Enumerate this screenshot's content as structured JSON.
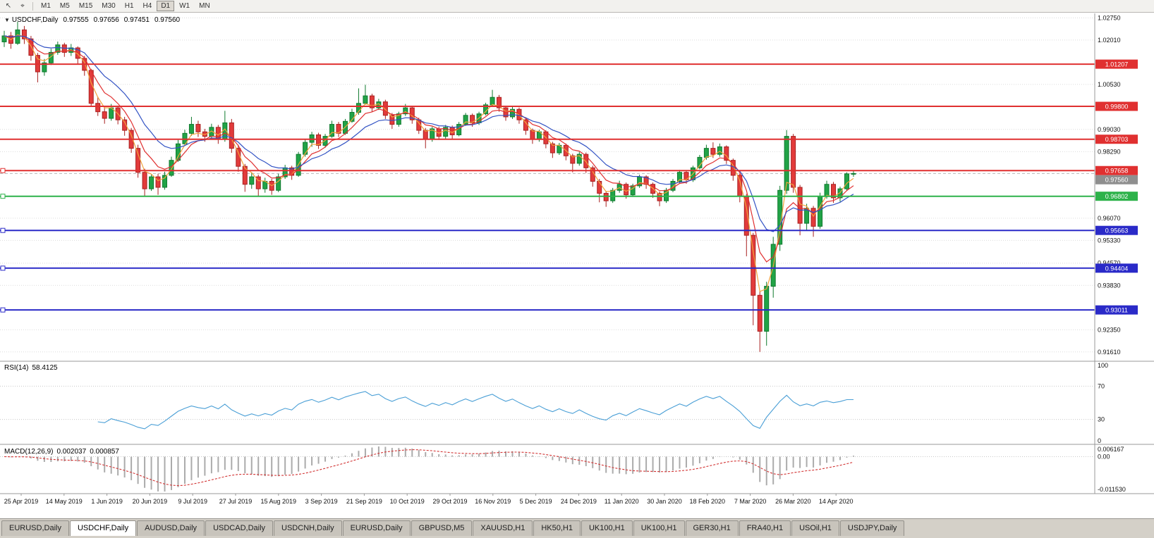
{
  "toolbar": {
    "pointer_icon": "↖",
    "crosshair_icon": "⌖",
    "timeframes": [
      "M1",
      "M5",
      "M15",
      "M30",
      "H1",
      "H4",
      "D1",
      "W1",
      "MN"
    ],
    "active_timeframe": "D1"
  },
  "chart": {
    "info": {
      "expander_icon": "▼",
      "symbol": "USDCHF,Daily",
      "open": "0.97555",
      "high": "0.97656",
      "low": "0.97451",
      "close": "0.97560"
    },
    "y_axis_ticks": [
      "1.02750",
      "1.02010",
      "1.00530",
      "0.99030",
      "0.98290",
      "0.96070",
      "0.95330",
      "0.94570",
      "0.93830",
      "0.92350",
      "0.91610"
    ],
    "levels": [
      {
        "price": 1.01207,
        "label": "1.01207",
        "color": "#e03030",
        "handle": false
      },
      {
        "price": 0.998,
        "label": "0.99800",
        "color": "#e03030",
        "handle": false
      },
      {
        "price": 0.98703,
        "label": "0.98703",
        "color": "#e03030",
        "handle": false
      },
      {
        "price": 0.97658,
        "label": "0.97658",
        "color": "#e03030",
        "handle": true
      },
      {
        "price": 0.96802,
        "label": "0.96802",
        "color": "#2db24a",
        "handle": true
      },
      {
        "price": 0.95663,
        "label": "0.95663",
        "color": "#2a2ac8",
        "handle": true
      },
      {
        "price": 0.94404,
        "label": "0.94404",
        "color": "#2a2ac8",
        "handle": true
      },
      {
        "price": 0.93011,
        "label": "0.93011",
        "color": "#2a2ac8",
        "handle": true
      }
    ],
    "current_price": {
      "label": "0.97560",
      "value": 0.9756,
      "color": "#8f8f8f"
    },
    "indicators": {
      "rsi": {
        "name": "RSI(14)",
        "value": "58.4125",
        "period": 14,
        "axis_labels": [
          "100",
          "70",
          "30",
          "0"
        ],
        "upper_level": 70,
        "lower_level": 30,
        "line_color": "#4a9fd6"
      },
      "macd": {
        "name": "MACD(12,26,9)",
        "value_main": "0.002037",
        "value_signal": "0.000857",
        "fast": 12,
        "slow": 26,
        "signal": 9,
        "axis_top": "0.006167",
        "axis_zero": "0.00",
        "axis_bottom": "-0.011530",
        "histogram_color": "#ababab",
        "signal_color": "#d23333"
      }
    }
  },
  "chart_data": {
    "type": "candlestick",
    "title": "USDCHF,Daily",
    "ylim": [
      0.913,
      1.029
    ],
    "up_color": "#21a347",
    "down_color": "#e23b3b",
    "up_border": "#0f7a2e",
    "down_border": "#a82020",
    "x_labels": [
      "25 Apr 2019",
      "14 May 2019",
      "1 Jun 2019",
      "20 Jun 2019",
      "9 Jul 2019",
      "27 Jul 2019",
      "15 Aug 2019",
      "3 Sep 2019",
      "21 Sep 2019",
      "10 Oct 2019",
      "29 Oct 2019",
      "16 Nov 2019",
      "5 Dec 2019",
      "24 Dec 2019",
      "11 Jan 2020",
      "30 Jan 2020",
      "18 Feb 2020",
      "7 Mar 2020",
      "26 Mar 2020",
      "14 Apr 2020"
    ],
    "moving_averages": [
      {
        "name": "ma-fast",
        "period": 3,
        "color": "#f2a33c"
      },
      {
        "name": "ma-mid",
        "period": 6,
        "color": "#e03030"
      },
      {
        "name": "ma-slow",
        "period": 12,
        "color": "#3353c4"
      }
    ],
    "candles": [
      [
        1.0195,
        1.0232,
        1.0178,
        1.0215
      ],
      [
        1.0215,
        1.0228,
        1.0172,
        1.019
      ],
      [
        1.019,
        1.0262,
        1.0185,
        1.0235
      ],
      [
        1.0235,
        1.0248,
        1.0188,
        1.0205
      ],
      [
        1.0205,
        1.0215,
        1.0132,
        1.015
      ],
      [
        1.015,
        1.0158,
        1.006,
        1.0095
      ],
      [
        1.0095,
        1.0138,
        1.0082,
        1.0125
      ],
      [
        1.0125,
        1.0172,
        1.0118,
        1.016
      ],
      [
        1.016,
        1.0196,
        1.0152,
        1.0185
      ],
      [
        1.0185,
        1.0192,
        1.0145,
        1.016
      ],
      [
        1.016,
        1.0188,
        1.0148,
        1.0175
      ],
      [
        1.0175,
        1.018,
        1.0122,
        1.014
      ],
      [
        1.014,
        1.0148,
        1.0082,
        1.01
      ],
      [
        1.01,
        1.0105,
        0.9978,
        0.999
      ],
      [
        0.999,
        1.0012,
        0.9948,
        0.9962
      ],
      [
        0.9962,
        0.998,
        0.9922,
        0.994
      ],
      [
        0.994,
        0.9988,
        0.9932,
        0.9975
      ],
      [
        0.9975,
        0.9982,
        0.992,
        0.9935
      ],
      [
        0.9935,
        0.9945,
        0.9882,
        0.99
      ],
      [
        0.99,
        0.9908,
        0.9825,
        0.984
      ],
      [
        0.984,
        0.9852,
        0.9742,
        0.976
      ],
      [
        0.976,
        0.9772,
        0.968,
        0.9705
      ],
      [
        0.9705,
        0.9752,
        0.9698,
        0.9745
      ],
      [
        0.9745,
        0.9755,
        0.9685,
        0.971
      ],
      [
        0.971,
        0.9762,
        0.9702,
        0.975
      ],
      [
        0.975,
        0.9812,
        0.9745,
        0.98
      ],
      [
        0.98,
        0.9868,
        0.9795,
        0.9855
      ],
      [
        0.9855,
        0.9902,
        0.9848,
        0.989
      ],
      [
        0.989,
        0.9945,
        0.9882,
        0.992
      ],
      [
        0.992,
        0.9932,
        0.9878,
        0.9895
      ],
      [
        0.9895,
        0.9905,
        0.9862,
        0.988
      ],
      [
        0.988,
        0.9922,
        0.9872,
        0.991
      ],
      [
        0.991,
        0.9918,
        0.9855,
        0.987
      ],
      [
        0.987,
        0.9965,
        0.9862,
        0.9925
      ],
      [
        0.9925,
        0.9938,
        0.9825,
        0.984
      ],
      [
        0.984,
        0.9852,
        0.9762,
        0.978
      ],
      [
        0.978,
        0.9788,
        0.9695,
        0.972
      ],
      [
        0.972,
        0.9758,
        0.9705,
        0.9745
      ],
      [
        0.9745,
        0.9752,
        0.968,
        0.9705
      ],
      [
        0.9705,
        0.9742,
        0.9692,
        0.973
      ],
      [
        0.973,
        0.9738,
        0.9685,
        0.97
      ],
      [
        0.97,
        0.9755,
        0.9694,
        0.9745
      ],
      [
        0.9745,
        0.9785,
        0.9738,
        0.9775
      ],
      [
        0.9775,
        0.9782,
        0.9735,
        0.975
      ],
      [
        0.975,
        0.9828,
        0.9745,
        0.982
      ],
      [
        0.982,
        0.9872,
        0.9812,
        0.986
      ],
      [
        0.986,
        0.9895,
        0.9845,
        0.9885
      ],
      [
        0.9885,
        0.9892,
        0.9838,
        0.985
      ],
      [
        0.985,
        0.9888,
        0.9842,
        0.988
      ],
      [
        0.988,
        0.9932,
        0.9875,
        0.992
      ],
      [
        0.992,
        0.9928,
        0.9878,
        0.989
      ],
      [
        0.989,
        0.9938,
        0.9885,
        0.993
      ],
      [
        0.993,
        0.9972,
        0.9925,
        0.996
      ],
      [
        0.996,
        1.004,
        0.9952,
        0.999
      ],
      [
        0.999,
        1.0052,
        0.9985,
        1.0015
      ],
      [
        1.0015,
        1.0022,
        0.9962,
        0.9975
      ],
      [
        0.9975,
        1.0005,
        0.9968,
        0.9995
      ],
      [
        0.9995,
        1.0002,
        0.9938,
        0.995
      ],
      [
        0.995,
        0.9958,
        0.9905,
        0.992
      ],
      [
        0.992,
        0.9962,
        0.9912,
        0.9955
      ],
      [
        0.9955,
        0.9988,
        0.9948,
        0.9975
      ],
      [
        0.9975,
        0.9982,
        0.9922,
        0.9935
      ],
      [
        0.9935,
        0.9942,
        0.9888,
        0.99
      ],
      [
        0.99,
        0.9908,
        0.984,
        0.987
      ],
      [
        0.987,
        0.9912,
        0.9862,
        0.9905
      ],
      [
        0.9905,
        0.9912,
        0.9868,
        0.988
      ],
      [
        0.988,
        0.9918,
        0.9872,
        0.991
      ],
      [
        0.991,
        0.9916,
        0.9872,
        0.9885
      ],
      [
        0.9885,
        0.9928,
        0.988,
        0.992
      ],
      [
        0.992,
        0.9958,
        0.9915,
        0.995
      ],
      [
        0.995,
        0.9956,
        0.9912,
        0.9925
      ],
      [
        0.9925,
        0.9962,
        0.9918,
        0.9955
      ],
      [
        0.9955,
        0.9992,
        0.995,
        0.9985
      ],
      [
        0.9985,
        1.0035,
        0.9978,
        1.001
      ],
      [
        1.001,
        1.0018,
        0.9962,
        0.9975
      ],
      [
        0.9975,
        0.9982,
        0.9932,
        0.9945
      ],
      [
        0.9945,
        0.9978,
        0.9938,
        0.997
      ],
      [
        0.997,
        0.9976,
        0.9922,
        0.9935
      ],
      [
        0.9935,
        0.9942,
        0.9885,
        0.99
      ],
      [
        0.99,
        0.9906,
        0.9855,
        0.987
      ],
      [
        0.987,
        0.9902,
        0.9862,
        0.9895
      ],
      [
        0.9895,
        0.99,
        0.984,
        0.9855
      ],
      [
        0.9855,
        0.9862,
        0.9808,
        0.9825
      ],
      [
        0.9825,
        0.9858,
        0.9818,
        0.985
      ],
      [
        0.985,
        0.9856,
        0.98,
        0.9815
      ],
      [
        0.9815,
        0.9822,
        0.976,
        0.979
      ],
      [
        0.979,
        0.9828,
        0.9782,
        0.982
      ],
      [
        0.982,
        0.9826,
        0.9758,
        0.9775
      ],
      [
        0.9775,
        0.9782,
        0.9712,
        0.973
      ],
      [
        0.973,
        0.9738,
        0.966,
        0.969
      ],
      [
        0.969,
        0.9698,
        0.9645,
        0.9665
      ],
      [
        0.9665,
        0.9708,
        0.9658,
        0.97
      ],
      [
        0.97,
        0.9732,
        0.9692,
        0.972
      ],
      [
        0.972,
        0.9726,
        0.9672,
        0.9685
      ],
      [
        0.9685,
        0.9722,
        0.9678,
        0.9715
      ],
      [
        0.9715,
        0.9752,
        0.9708,
        0.9745
      ],
      [
        0.9745,
        0.975,
        0.9705,
        0.972
      ],
      [
        0.972,
        0.9726,
        0.9675,
        0.969
      ],
      [
        0.969,
        0.9696,
        0.9647,
        0.9665
      ],
      [
        0.9665,
        0.9708,
        0.9658,
        0.97
      ],
      [
        0.97,
        0.9738,
        0.9694,
        0.973
      ],
      [
        0.973,
        0.9768,
        0.9724,
        0.976
      ],
      [
        0.976,
        0.9766,
        0.9722,
        0.9735
      ],
      [
        0.9735,
        0.9782,
        0.9728,
        0.9775
      ],
      [
        0.9775,
        0.9818,
        0.977,
        0.981
      ],
      [
        0.981,
        0.9852,
        0.9802,
        0.984
      ],
      [
        0.984,
        0.986,
        0.9808,
        0.982
      ],
      [
        0.982,
        0.9856,
        0.9812,
        0.9845
      ],
      [
        0.9845,
        0.985,
        0.9788,
        0.98
      ],
      [
        0.98,
        0.9806,
        0.9732,
        0.975
      ],
      [
        0.975,
        0.9756,
        0.966,
        0.968
      ],
      [
        0.968,
        0.9688,
        0.948,
        0.955
      ],
      [
        0.955,
        0.9558,
        0.925,
        0.935
      ],
      [
        0.935,
        0.9362,
        0.9161,
        0.923
      ],
      [
        0.923,
        0.9395,
        0.9182,
        0.938
      ],
      [
        0.938,
        0.9545,
        0.9342,
        0.952
      ],
      [
        0.952,
        0.9715,
        0.9498,
        0.97
      ],
      [
        0.97,
        0.9901,
        0.9688,
        0.988
      ],
      [
        0.988,
        0.9888,
        0.9692,
        0.971
      ],
      [
        0.971,
        0.9718,
        0.955,
        0.959
      ],
      [
        0.959,
        0.9655,
        0.9565,
        0.964
      ],
      [
        0.964,
        0.9648,
        0.9545,
        0.958
      ],
      [
        0.958,
        0.9692,
        0.9572,
        0.968
      ],
      [
        0.968,
        0.9732,
        0.9672,
        0.972
      ],
      [
        0.972,
        0.9728,
        0.9658,
        0.9675
      ],
      [
        0.9675,
        0.9712,
        0.9662,
        0.9705
      ],
      [
        0.9705,
        0.976,
        0.9698,
        0.9755
      ],
      [
        0.9755,
        0.9766,
        0.9745,
        0.9756
      ]
    ]
  },
  "tabs": {
    "items": [
      "EURUSD,Daily",
      "USDCHF,Daily",
      "AUDUSD,Daily",
      "USDCAD,Daily",
      "USDCNH,Daily",
      "EURUSD,Daily",
      "GBPUSD,M5",
      "XAUUSD,H1",
      "HK50,H1",
      "UK100,H1",
      "UK100,H1",
      "GER30,H1",
      "FRA40,H1",
      "USOil,H1",
      "USDJPY,Daily"
    ],
    "active_index": 1
  }
}
